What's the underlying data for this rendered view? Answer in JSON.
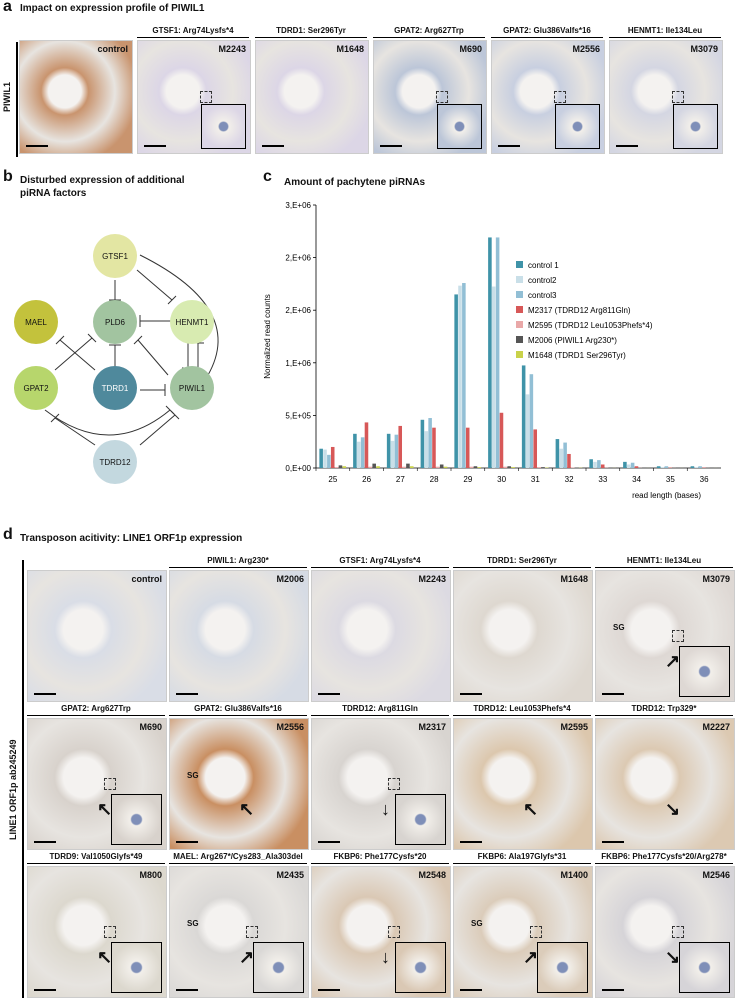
{
  "panel_a": {
    "letter": "a",
    "title": "Impact on expression profile of PIWIL1",
    "row_label": "PIWIL1",
    "tiles": [
      {
        "header": "",
        "id": "control",
        "stain": "#c9946e",
        "inset": false
      },
      {
        "header": "GTSF1: Arg74Lysfs*4",
        "id": "M2243",
        "stain": "#dcd6e6",
        "inset": true
      },
      {
        "header": "TDRD1: Ser296Tyr",
        "id": "M1648",
        "stain": "#dcd6e6",
        "inset": false
      },
      {
        "header": "GPAT2: Arg627Trp",
        "id": "M690",
        "stain": "#bcc6d8",
        "inset": true
      },
      {
        "header": "GPAT2: Glu386Valfs*16",
        "id": "M2556",
        "stain": "#c8cfe0",
        "inset": true
      },
      {
        "header": "HENMT1: Ile134Leu",
        "id": "M3079",
        "stain": "#d4d6e2",
        "inset": true
      }
    ]
  },
  "panel_b": {
    "letter": "b",
    "title_line1": "Disturbed expression of additional",
    "title_line2": "piRNA factors",
    "nodes": {
      "gtsf1": {
        "label": "GTSF1",
        "color": "#e3e6a3"
      },
      "mael": {
        "label": "MAEL",
        "color": "#c3c23c"
      },
      "pld6": {
        "label": "PLD6",
        "color": "#a2c4a0"
      },
      "henmt1": {
        "label": "HENMT1",
        "color": "#d8ebb1"
      },
      "gpat2": {
        "label": "GPAT2",
        "color": "#b7d66c"
      },
      "tdrd1": {
        "label": "TDRD1",
        "color": "#4f899c"
      },
      "piwil1": {
        "label": "PIWIL1",
        "color": "#a2c4a0"
      },
      "tdrd12": {
        "label": "TDRD12",
        "color": "#c3d8df"
      }
    }
  },
  "panel_c": {
    "letter": "c",
    "title": "Amount of pachytene piRNAs"
  },
  "chart_data": {
    "type": "bar",
    "title": "Amount of pachytene piRNAs",
    "xlabel": "read length (bases)",
    "ylabel": "Normalized read counts",
    "categories": [
      "25",
      "26",
      "27",
      "28",
      "29",
      "30",
      "31",
      "32",
      "33",
      "34",
      "35",
      "36"
    ],
    "yticks": [
      "0,E+00",
      "5,E+05",
      "1,E+06",
      "2,E+06",
      "2,E+06",
      "3,E+06"
    ],
    "ylim": [
      0,
      3000000
    ],
    "legend_position": "top-right",
    "series": [
      {
        "name": "control 1",
        "color": "#3f93a8",
        "values": [
          220000,
          390000,
          390000,
          550000,
          1980000,
          2630000,
          1170000,
          330000,
          100000,
          70000,
          20000,
          20000
        ]
      },
      {
        "name": "control2",
        "color": "#c9dfe8",
        "values": [
          210000,
          300000,
          310000,
          420000,
          2080000,
          2070000,
          840000,
          220000,
          70000,
          40000,
          10000,
          10000
        ]
      },
      {
        "name": "control3",
        "color": "#92bfd5",
        "values": [
          150000,
          350000,
          380000,
          570000,
          2110000,
          2630000,
          1070000,
          290000,
          90000,
          60000,
          20000,
          20000
        ]
      },
      {
        "name": "M2317 (TDRD12 Arg811Gln)",
        "color": "#d75858",
        "values": [
          240000,
          520000,
          480000,
          460000,
          460000,
          630000,
          440000,
          160000,
          40000,
          20000,
          5000,
          5000
        ]
      },
      {
        "name": "M2595 (TDRD12 Leu1053Phefs*4)",
        "color": "#e9a8a8",
        "values": [
          10000,
          15000,
          15000,
          15000,
          15000,
          15000,
          10000,
          5000,
          3000,
          2000,
          1000,
          1000
        ]
      },
      {
        "name": "M2006 (PIWIL1 Arg230*)",
        "color": "#555555",
        "values": [
          30000,
          50000,
          50000,
          40000,
          20000,
          20000,
          10000,
          5000,
          2000,
          1000,
          500,
          500
        ]
      },
      {
        "name": "M1648 (TDRD1 Ser296Tyr)",
        "color": "#c9d24a",
        "values": [
          20000,
          20000,
          20000,
          15000,
          10000,
          10000,
          5000,
          3000,
          1000,
          500,
          500,
          500
        ]
      }
    ]
  },
  "panel_d": {
    "letter": "d",
    "title": "Transposon acitivity: LINE1 ORF1p expression",
    "row_label": "LINE1 ORF1p ab245249",
    "tiles": [
      {
        "header": "",
        "id": "control",
        "stain": "#d9dde6",
        "inset": false,
        "sg": "",
        "arrow": ""
      },
      {
        "header": "PIWIL1: Arg230*",
        "id": "M2006",
        "stain": "#d6dbe4",
        "inset": false,
        "sg": "",
        "arrow": ""
      },
      {
        "header": "GTSF1: Arg74Lysfs*4",
        "id": "M2243",
        "stain": "#dcdae2",
        "inset": false,
        "sg": "",
        "arrow": ""
      },
      {
        "header": "TDRD1: Ser296Tyr",
        "id": "M1648",
        "stain": "#ded8d0",
        "inset": false,
        "sg": "",
        "arrow": ""
      },
      {
        "header": "HENMT1: Ile134Leu",
        "id": "M3079",
        "stain": "#ded8d4",
        "inset": true,
        "sg": "SG",
        "arrow": "↗"
      },
      {
        "header": "GPAT2: Arg627Trp",
        "id": "M690",
        "stain": "#d8d2cc",
        "inset": true,
        "sg": "",
        "arrow": "↖"
      },
      {
        "header": "GPAT2: Glu386Valfs*16",
        "id": "M2556",
        "stain": "#c98f62",
        "inset": false,
        "sg": "SG",
        "arrow": "↖"
      },
      {
        "header": "TDRD12: Arg811Gln",
        "id": "M2317",
        "stain": "#d8d4d0",
        "inset": true,
        "sg": "",
        "arrow": "↓"
      },
      {
        "header": "TDRD12: Leu1053Phefs*4",
        "id": "M2595",
        "stain": "#dcc7ad",
        "inset": false,
        "sg": "",
        "arrow": "↖"
      },
      {
        "header": "TDRD12: Trp329*",
        "id": "M2227",
        "stain": "#dcc9b2",
        "inset": false,
        "sg": "",
        "arrow": "↘"
      },
      {
        "header": "TDRD9: Val1050Glyfs*49",
        "id": "M800",
        "stain": "#dcd8ce",
        "inset": true,
        "sg": "",
        "arrow": "↖"
      },
      {
        "header": "MAEL: Arg267*/Cys283_Ala303del",
        "id": "M2435",
        "stain": "#dad8d6",
        "inset": true,
        "sg": "SG",
        "arrow": "↗"
      },
      {
        "header": "FKBP6: Phe177Cysfs*20",
        "id": "M2548",
        "stain": "#dac8b4",
        "inset": true,
        "sg": "",
        "arrow": "↓"
      },
      {
        "header": "FKBP6: Ala197Glyfs*31",
        "id": "M1400",
        "stain": "#dbccba",
        "inset": true,
        "sg": "SG",
        "arrow": "↗"
      },
      {
        "header": "FKBP6: Phe177Cysfs*20/Arg278*",
        "id": "M2546",
        "stain": "#d6d4d8",
        "inset": true,
        "sg": "",
        "arrow": "↘"
      }
    ]
  }
}
